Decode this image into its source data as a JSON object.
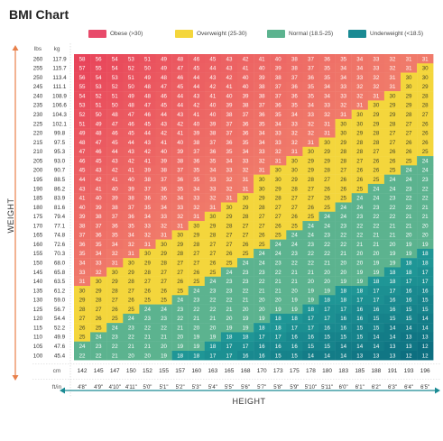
{
  "title": "BMI Chart",
  "legend": [
    {
      "label": "Obese (>30)",
      "color": "#e84a6a"
    },
    {
      "label": "Overweight (25-30)",
      "color": "#f4d63c"
    },
    {
      "label": "Normal (18.5-25)",
      "color": "#5cb38f"
    },
    {
      "label": "Underweight (<18.5)",
      "color": "#1a8a93"
    }
  ],
  "axis": {
    "weight_label": "WEIGHT",
    "height_label": "HEIGHT",
    "lbs_header": "lbs",
    "kg_header": "kg",
    "cm_header": "cm",
    "ftin_header": "ft/in"
  },
  "chart_data": {
    "type": "heatmap",
    "title": "BMI Chart",
    "xlabel": "HEIGHT",
    "ylabel": "WEIGHT",
    "x_cm": [
      142,
      145,
      147,
      150,
      152,
      155,
      157,
      160,
      163,
      165,
      168,
      170,
      173,
      175,
      178,
      180,
      183,
      185,
      188,
      191,
      193,
      196
    ],
    "x_ftin": [
      "4'8\"",
      "4'9\"",
      "4'10\"",
      "4'11\"",
      "5'0\"",
      "5'1\"",
      "5'2\"",
      "5'3\"",
      "5'4\"",
      "5'5\"",
      "5'6\"",
      "5'7\"",
      "5'8\"",
      "5'9\"",
      "5'10\"",
      "5'11\"",
      "6'0\"",
      "6'1\"",
      "6'2\"",
      "6'3\"",
      "6'4\"",
      "6'5\""
    ],
    "y_lbs": [
      260,
      255,
      250,
      245,
      240,
      235,
      230,
      225,
      220,
      215,
      210,
      205,
      200,
      195,
      190,
      185,
      180,
      175,
      170,
      165,
      160,
      155,
      150,
      145,
      140,
      135,
      130,
      125,
      120,
      115,
      110,
      105,
      100
    ],
    "y_kg": [
      117.9,
      115.7,
      113.4,
      111.1,
      108.9,
      106.6,
      104.3,
      102.1,
      99.8,
      97.5,
      95.3,
      93.0,
      90.7,
      88.5,
      86.2,
      83.9,
      81.6,
      79.4,
      77.1,
      74.8,
      72.6,
      70.3,
      68.0,
      65.8,
      63.5,
      61.2,
      59.0,
      56.7,
      54.4,
      52.2,
      49.9,
      47.6,
      45.4
    ],
    "values": [
      [
        58,
        56,
        54,
        53,
        51,
        49,
        48,
        46,
        45,
        43,
        42,
        41,
        40,
        38,
        37,
        36,
        35,
        34,
        33,
        32,
        31,
        31
      ],
      [
        57,
        55,
        54,
        52,
        50,
        49,
        47,
        45,
        44,
        43,
        41,
        40,
        39,
        38,
        37,
        35,
        34,
        34,
        33,
        32,
        31,
        30
      ],
      [
        56,
        54,
        53,
        51,
        49,
        48,
        46,
        44,
        43,
        42,
        40,
        39,
        38,
        37,
        36,
        35,
        34,
        33,
        32,
        31,
        30,
        30
      ],
      [
        55,
        53,
        52,
        50,
        48,
        47,
        45,
        44,
        42,
        41,
        40,
        38,
        37,
        36,
        35,
        34,
        33,
        32,
        32,
        31,
        30,
        29
      ],
      [
        54,
        52,
        51,
        49,
        48,
        46,
        44,
        43,
        41,
        40,
        39,
        38,
        37,
        36,
        35,
        34,
        33,
        32,
        31,
        30,
        29,
        28
      ],
      [
        53,
        51,
        50,
        48,
        47,
        45,
        44,
        42,
        40,
        39,
        38,
        37,
        36,
        35,
        34,
        33,
        32,
        31,
        30,
        29,
        29,
        28
      ],
      [
        52,
        50,
        48,
        47,
        46,
        44,
        43,
        41,
        40,
        38,
        37,
        36,
        35,
        34,
        33,
        32,
        31,
        30,
        29,
        29,
        28,
        27
      ],
      [
        51,
        49,
        47,
        46,
        45,
        43,
        42,
        40,
        39,
        37,
        36,
        35,
        34,
        33,
        32,
        31,
        30,
        30,
        29,
        28,
        27,
        26
      ],
      [
        49,
        48,
        46,
        45,
        44,
        42,
        41,
        39,
        38,
        37,
        36,
        34,
        33,
        32,
        32,
        31,
        30,
        29,
        28,
        27,
        27,
        26
      ],
      [
        48,
        47,
        45,
        44,
        43,
        41,
        40,
        38,
        37,
        36,
        35,
        34,
        33,
        32,
        31,
        30,
        29,
        28,
        28,
        27,
        26,
        26
      ],
      [
        47,
        46,
        44,
        43,
        42,
        40,
        39,
        37,
        36,
        35,
        34,
        33,
        32,
        31,
        30,
        29,
        28,
        28,
        27,
        26,
        26,
        25
      ],
      [
        46,
        45,
        43,
        42,
        41,
        39,
        38,
        36,
        35,
        34,
        33,
        32,
        31,
        30,
        29,
        29,
        28,
        27,
        26,
        26,
        25,
        24
      ],
      [
        45,
        43,
        42,
        41,
        39,
        38,
        37,
        35,
        34,
        33,
        32,
        31,
        30,
        30,
        29,
        28,
        27,
        26,
        26,
        25,
        24,
        24
      ],
      [
        44,
        42,
        41,
        40,
        38,
        37,
        36,
        35,
        33,
        32,
        31,
        30,
        30,
        29,
        28,
        27,
        26,
        26,
        25,
        24,
        24,
        23
      ],
      [
        43,
        41,
        40,
        39,
        37,
        36,
        35,
        34,
        33,
        32,
        31,
        30,
        29,
        28,
        27,
        26,
        26,
        25,
        24,
        24,
        23,
        22
      ],
      [
        41,
        40,
        39,
        38,
        36,
        35,
        34,
        33,
        32,
        31,
        30,
        29,
        28,
        27,
        27,
        26,
        25,
        24,
        24,
        23,
        22,
        22
      ],
      [
        40,
        39,
        38,
        37,
        35,
        34,
        33,
        32,
        31,
        30,
        29,
        28,
        27,
        27,
        26,
        25,
        24,
        24,
        23,
        22,
        22,
        21
      ],
      [
        39,
        38,
        37,
        36,
        34,
        33,
        32,
        31,
        30,
        29,
        28,
        27,
        27,
        26,
        25,
        24,
        24,
        23,
        22,
        22,
        21,
        21
      ],
      [
        38,
        37,
        36,
        35,
        33,
        32,
        31,
        30,
        29,
        28,
        27,
        27,
        26,
        25,
        24,
        24,
        23,
        22,
        22,
        21,
        21,
        20
      ],
      [
        37,
        36,
        35,
        34,
        32,
        31,
        30,
        29,
        28,
        27,
        27,
        26,
        25,
        24,
        24,
        23,
        22,
        22,
        21,
        21,
        20,
        20
      ],
      [
        36,
        35,
        34,
        32,
        31,
        30,
        29,
        28,
        27,
        27,
        26,
        25,
        24,
        24,
        23,
        22,
        22,
        21,
        21,
        20,
        19,
        19
      ],
      [
        35,
        34,
        32,
        31,
        30,
        29,
        28,
        27,
        27,
        26,
        25,
        24,
        24,
        23,
        22,
        22,
        21,
        20,
        20,
        19,
        19,
        18
      ],
      [
        34,
        33,
        31,
        30,
        29,
        28,
        27,
        27,
        26,
        25,
        24,
        24,
        23,
        22,
        22,
        21,
        20,
        20,
        19,
        19,
        18,
        18
      ],
      [
        33,
        32,
        30,
        29,
        28,
        27,
        27,
        26,
        25,
        24,
        23,
        23,
        22,
        21,
        21,
        20,
        20,
        19,
        19,
        18,
        18,
        17
      ],
      [
        31,
        30,
        29,
        28,
        27,
        27,
        26,
        25,
        24,
        23,
        23,
        22,
        21,
        21,
        20,
        20,
        19,
        19,
        18,
        18,
        17,
        17
      ],
      [
        30,
        29,
        28,
        27,
        26,
        26,
        25,
        24,
        23,
        23,
        22,
        21,
        21,
        20,
        19,
        19,
        18,
        18,
        17,
        17,
        16,
        16
      ],
      [
        29,
        28,
        27,
        26,
        25,
        25,
        24,
        23,
        22,
        22,
        21,
        20,
        20,
        19,
        19,
        18,
        18,
        17,
        17,
        16,
        16,
        15
      ],
      [
        28,
        27,
        26,
        25,
        24,
        24,
        23,
        22,
        22,
        21,
        20,
        20,
        19,
        19,
        18,
        17,
        17,
        16,
        16,
        16,
        15,
        15
      ],
      [
        27,
        26,
        25,
        24,
        23,
        23,
        22,
        21,
        21,
        20,
        19,
        19,
        18,
        18,
        17,
        17,
        16,
        16,
        15,
        15,
        15,
        14
      ],
      [
        26,
        25,
        24,
        23,
        22,
        22,
        21,
        20,
        20,
        19,
        19,
        18,
        18,
        17,
        17,
        16,
        16,
        15,
        15,
        14,
        14,
        14
      ],
      [
        25,
        24,
        23,
        22,
        21,
        21,
        20,
        19,
        19,
        18,
        18,
        17,
        17,
        16,
        16,
        15,
        15,
        15,
        14,
        14,
        13,
        13
      ],
      [
        24,
        23,
        22,
        21,
        21,
        20,
        19,
        19,
        18,
        17,
        17,
        16,
        16,
        16,
        15,
        15,
        14,
        14,
        14,
        13,
        13,
        12
      ],
      [
        22,
        22,
        21,
        20,
        20,
        19,
        18,
        18,
        17,
        17,
        16,
        16,
        15,
        15,
        14,
        14,
        14,
        13,
        13,
        13,
        12,
        12
      ]
    ],
    "categories_bins": [
      "Obese (>30)",
      "Overweight (25-30)",
      "Normal (18.5-25)",
      "Underweight (<18.5)"
    ],
    "colors": {
      "obese_high": "#e8445a",
      "obese_low": "#f07a6a",
      "overweight": "#f4d63c",
      "normal": "#5cb38f",
      "underweight_high": "#1f9696",
      "underweight_low": "#0d6f80",
      "axis_accent": "#e8804a",
      "height_accent": "#1a8a93"
    }
  }
}
